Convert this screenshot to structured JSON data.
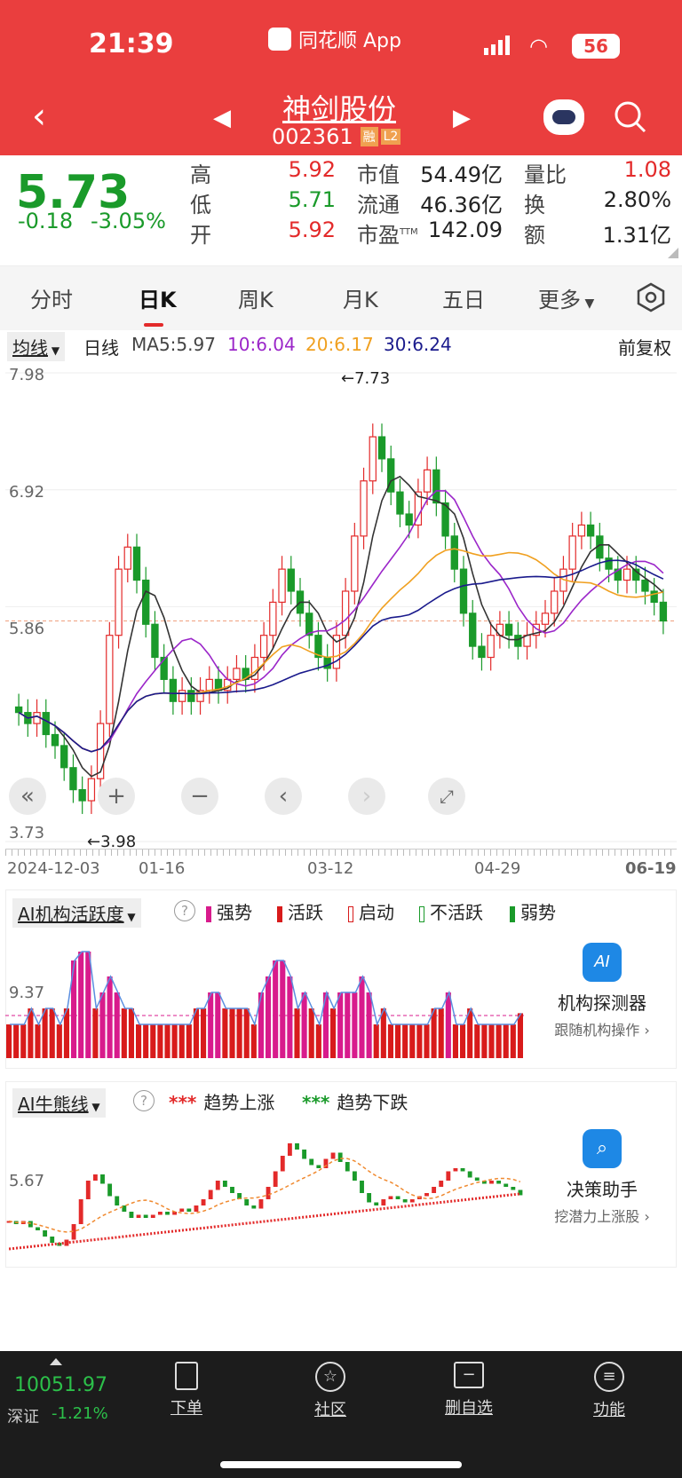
{
  "status": {
    "time": "21:39",
    "app": "同花顺 App",
    "battery": "56"
  },
  "nav": {
    "name": "神剑股份",
    "code": "002361",
    "badge1": "融",
    "badge2": "L2"
  },
  "quote": {
    "price": "5.73",
    "change": "-0.18",
    "pct": "-3.05%",
    "high_l": "高",
    "high": "5.92",
    "low_l": "低",
    "low": "5.71",
    "open_l": "开",
    "open": "5.92",
    "mcap_l": "市值",
    "mcap": "54.49亿",
    "float_l": "流通",
    "float": "46.36亿",
    "pe_l": "市盈",
    "pe_sup": "TTM",
    "pe": "142.09",
    "vr_l": "量比",
    "vr": "1.08",
    "turn_l": "换",
    "turn": "2.80%",
    "amt_l": "额",
    "amt": "1.31亿"
  },
  "tabs": [
    "分时",
    "日K",
    "周K",
    "月K",
    "五日",
    "更多"
  ],
  "ma": {
    "selector": "均线",
    "period": "日线",
    "ma5": "MA5:5.97",
    "ma10": "10:6.04",
    "ma20": "20:6.17",
    "ma30": "30:6.24",
    "adjust": "前复权"
  },
  "kchart": {
    "y_top": "7.98",
    "y_mid": "6.92",
    "y_low": "5.86",
    "y_bot": "3.73",
    "hi_label": "←7.73",
    "lo_label": "←3.98",
    "dates": [
      "2024-12-03",
      "01-16",
      "03-12",
      "04-29",
      "06-19"
    ]
  },
  "ai1": {
    "title": "AI机构活跃度",
    "help": "?",
    "legend": [
      "强势",
      "活跃",
      "启动",
      "不活跃",
      "弱势"
    ],
    "y": "9.37",
    "side_title": "机构探测器",
    "side_sub": "跟随机构操作 ›"
  },
  "ai2": {
    "title": "AI牛熊线",
    "help": "?",
    "legend": [
      "趋势上涨",
      "趋势下跌"
    ],
    "y": "5.67",
    "side_title": "决策助手",
    "side_sub": "挖潜力上涨股 ›"
  },
  "bottom": {
    "index_val": "10051.97",
    "index_name": "深证",
    "index_pct": "-1.21%",
    "items": [
      "下单",
      "社区",
      "删自选",
      "功能"
    ]
  },
  "colors": {
    "brand": "#ea3e3e",
    "up": "#e32a2a",
    "down": "#1a9a2a",
    "ma5": "#333333",
    "ma10": "#9b26c9",
    "ma20": "#f0a020",
    "ma30": "#1a1a8c"
  },
  "chart_data": {
    "type": "candlestick",
    "y_ticks": [
      7.98,
      6.92,
      5.86,
      3.73
    ],
    "high_marker": 7.73,
    "low_marker": 3.98,
    "x_ticks": [
      "2024-12-03",
      "01-16",
      "03-12",
      "04-29",
      "06-19"
    ],
    "ma_values": {
      "MA5": 5.97,
      "MA10": 6.04,
      "MA20": 6.17,
      "MA30": 6.24
    },
    "approx_closes": [
      4.9,
      4.8,
      4.9,
      4.7,
      4.6,
      4.4,
      4.2,
      4.1,
      4.3,
      4.8,
      5.6,
      6.2,
      6.4,
      6.1,
      5.7,
      5.4,
      5.2,
      5.0,
      5.1,
      5.0,
      5.1,
      5.2,
      5.1,
      5.2,
      5.3,
      5.2,
      5.4,
      5.6,
      5.9,
      6.2,
      6.0,
      5.8,
      5.6,
      5.4,
      5.3,
      5.6,
      6.0,
      6.5,
      7.0,
      7.4,
      7.2,
      6.9,
      6.7,
      6.6,
      6.9,
      7.1,
      6.8,
      6.5,
      6.2,
      5.8,
      5.5,
      5.4,
      5.6,
      5.7,
      5.6,
      5.5,
      5.6,
      5.7,
      5.8,
      6.0,
      6.2,
      6.5,
      6.6,
      6.5,
      6.3,
      6.2,
      6.1,
      6.2,
      6.1,
      6.0,
      5.9,
      5.73
    ]
  }
}
